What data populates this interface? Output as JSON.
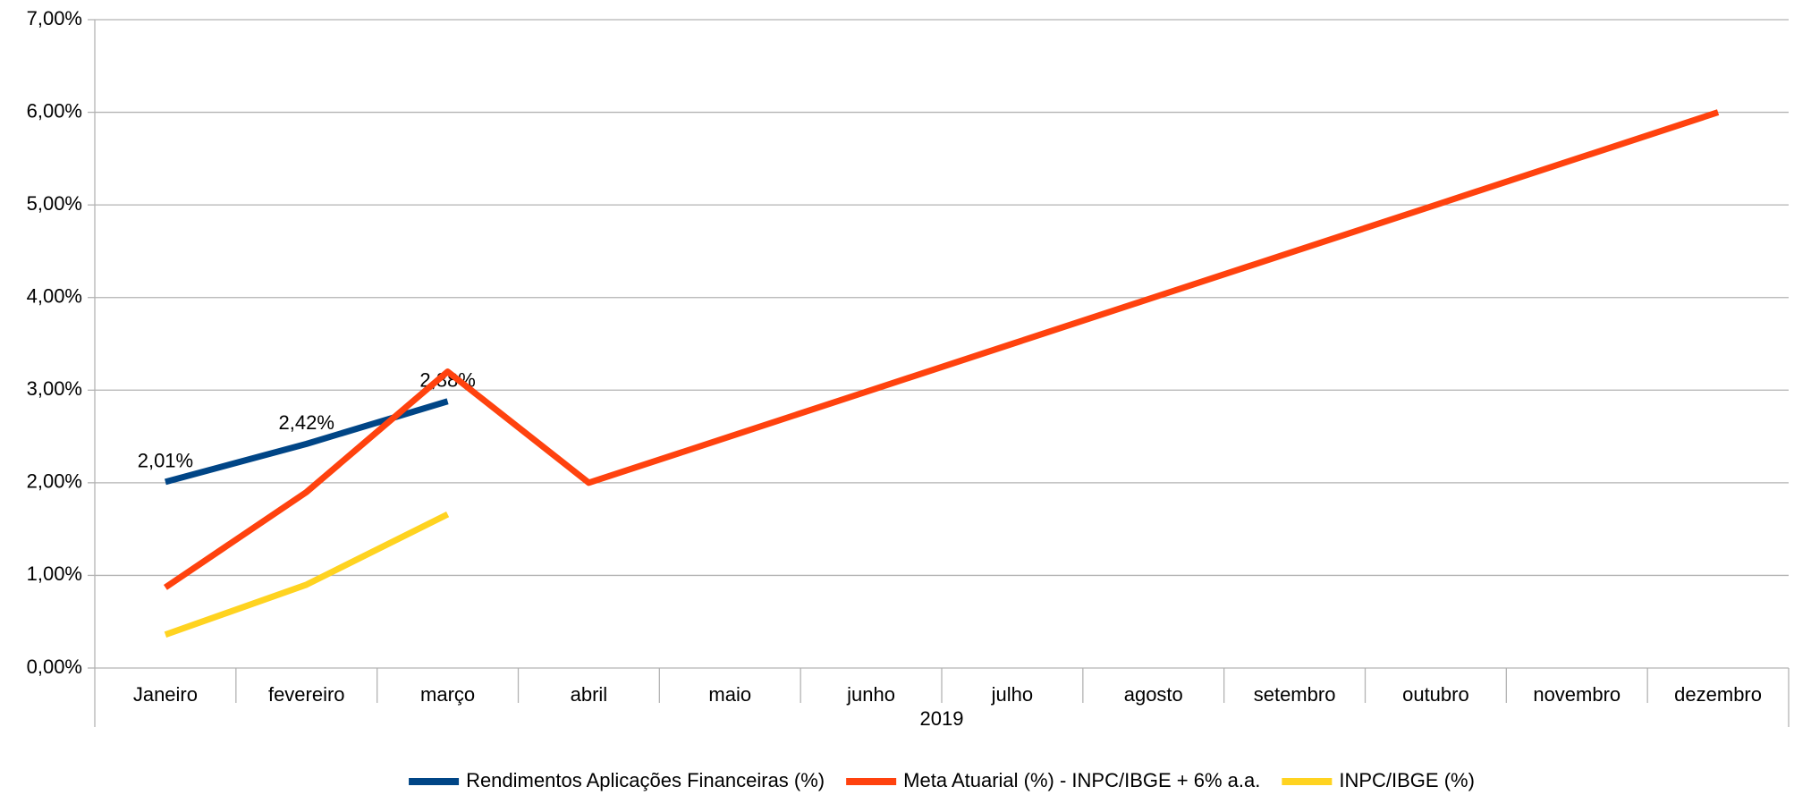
{
  "chart_data": {
    "type": "line",
    "categories": [
      "Janeiro",
      "fevereiro",
      "março",
      "abril",
      "maio",
      "junho",
      "julho",
      "agosto",
      "setembro",
      "outubro",
      "novembro",
      "dezembro"
    ],
    "x_group_label": "2019",
    "series": [
      {
        "name": "Rendimentos Aplicações Financeiras (%)",
        "color": "#004586",
        "values": [
          2.01,
          2.42,
          2.88,
          null,
          null,
          null,
          null,
          null,
          null,
          null,
          null,
          null
        ],
        "value_labels": [
          "2,01%",
          "2,42%",
          "2,88%",
          null,
          null,
          null,
          null,
          null,
          null,
          null,
          null,
          null
        ]
      },
      {
        "name": "Meta Atuarial (%) - INPC/IBGE + 6% a.a.",
        "color": "#ff420e",
        "values": [
          0.87,
          1.9,
          3.2,
          2.0,
          2.5,
          3.0,
          3.5,
          4.0,
          4.5,
          5.0,
          5.5,
          6.0
        ]
      },
      {
        "name": "INPC/IBGE (%)",
        "color": "#ffd320",
        "values": [
          0.36,
          0.9,
          1.66,
          null,
          null,
          null,
          null,
          null,
          null,
          null,
          null,
          null
        ]
      }
    ],
    "ylim": [
      0,
      7
    ],
    "yticks": [
      {
        "value": 0,
        "label": "0,00%"
      },
      {
        "value": 1,
        "label": "1,00%"
      },
      {
        "value": 2,
        "label": "2,00%"
      },
      {
        "value": 3,
        "label": "3,00%"
      },
      {
        "value": 4,
        "label": "4,00%"
      },
      {
        "value": 5,
        "label": "5,00%"
      },
      {
        "value": 6,
        "label": "6,00%"
      },
      {
        "value": 7,
        "label": "7,00%"
      }
    ],
    "grid": true,
    "legend": "bottom"
  }
}
